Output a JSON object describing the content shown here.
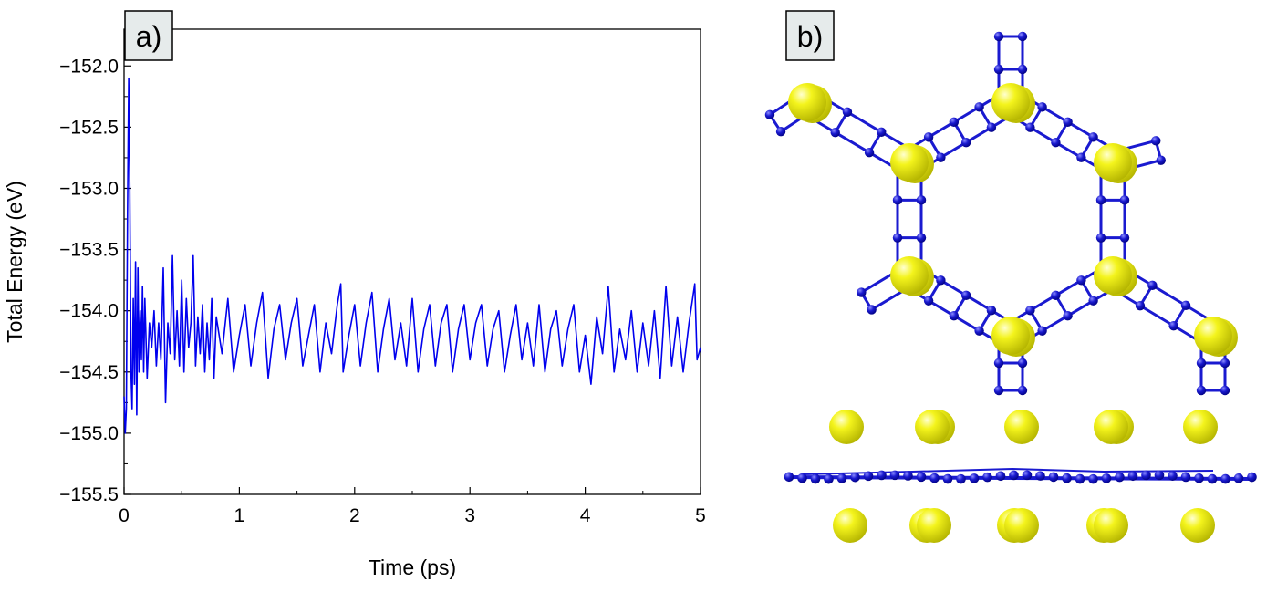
{
  "panels": {
    "a_label": "a)",
    "b_label": "b)"
  },
  "colors": {
    "series": "#0000ee",
    "atom_blue": "#1a1ad0",
    "atom_yellow": "#ecec10",
    "label_box_bg": "#e6ebeb"
  },
  "chart_data": {
    "type": "line",
    "title": "",
    "xlabel": "Time (ps)",
    "ylabel": "Total Energy (eV)",
    "xlim": [
      0,
      5
    ],
    "ylim": [
      -155.5,
      -151.7
    ],
    "x_ticks": [
      0,
      1,
      2,
      3,
      4,
      5
    ],
    "x_tick_labels": [
      "0",
      "1",
      "2",
      "3",
      "4",
      "5"
    ],
    "y_ticks": [
      -152.0,
      -152.5,
      -153.0,
      -153.5,
      -154.0,
      -154.5,
      -155.0,
      -155.5
    ],
    "y_tick_labels": [
      "−152.0",
      "−152.5",
      "−153.0",
      "−153.5",
      "−154.0",
      "−154.5",
      "−155.0",
      "−155.5"
    ],
    "grid": false,
    "legend": "none",
    "series": [
      {
        "points": [
          [
            0.0,
            -154.7
          ],
          [
            0.01,
            -155.0
          ],
          [
            0.02,
            -154.8
          ],
          [
            0.03,
            -153.2
          ],
          [
            0.04,
            -152.1
          ],
          [
            0.05,
            -153.0
          ],
          [
            0.06,
            -154.5
          ],
          [
            0.07,
            -154.8
          ],
          [
            0.08,
            -153.9
          ],
          [
            0.09,
            -154.6
          ],
          [
            0.1,
            -153.6
          ],
          [
            0.11,
            -154.85
          ],
          [
            0.12,
            -153.65
          ],
          [
            0.13,
            -154.5
          ],
          [
            0.14,
            -154.0
          ],
          [
            0.15,
            -154.4
          ],
          [
            0.16,
            -153.8
          ],
          [
            0.17,
            -154.5
          ],
          [
            0.18,
            -153.9
          ],
          [
            0.2,
            -154.55
          ],
          [
            0.22,
            -154.1
          ],
          [
            0.24,
            -154.3
          ],
          [
            0.26,
            -154.0
          ],
          [
            0.28,
            -154.45
          ],
          [
            0.3,
            -154.1
          ],
          [
            0.32,
            -154.4
          ],
          [
            0.34,
            -153.65
          ],
          [
            0.36,
            -154.75
          ],
          [
            0.38,
            -154.1
          ],
          [
            0.4,
            -154.35
          ],
          [
            0.42,
            -153.55
          ],
          [
            0.44,
            -154.4
          ],
          [
            0.46,
            -154.0
          ],
          [
            0.48,
            -154.45
          ],
          [
            0.5,
            -153.75
          ],
          [
            0.52,
            -154.5
          ],
          [
            0.54,
            -153.9
          ],
          [
            0.56,
            -154.3
          ],
          [
            0.58,
            -154.1
          ],
          [
            0.6,
            -153.55
          ],
          [
            0.62,
            -154.45
          ],
          [
            0.64,
            -154.05
          ],
          [
            0.66,
            -154.35
          ],
          [
            0.68,
            -153.95
          ],
          [
            0.7,
            -154.5
          ],
          [
            0.72,
            -154.1
          ],
          [
            0.74,
            -154.4
          ],
          [
            0.76,
            -153.9
          ],
          [
            0.78,
            -154.55
          ],
          [
            0.8,
            -154.05
          ],
          [
            0.85,
            -154.35
          ],
          [
            0.9,
            -153.9
          ],
          [
            0.95,
            -154.5
          ],
          [
            1.0,
            -154.2
          ],
          [
            1.05,
            -153.95
          ],
          [
            1.1,
            -154.45
          ],
          [
            1.15,
            -154.1
          ],
          [
            1.2,
            -153.85
          ],
          [
            1.25,
            -154.55
          ],
          [
            1.3,
            -154.15
          ],
          [
            1.35,
            -153.95
          ],
          [
            1.4,
            -154.4
          ],
          [
            1.45,
            -154.1
          ],
          [
            1.5,
            -153.9
          ],
          [
            1.55,
            -154.45
          ],
          [
            1.6,
            -154.2
          ],
          [
            1.65,
            -153.95
          ],
          [
            1.7,
            -154.5
          ],
          [
            1.75,
            -154.1
          ],
          [
            1.8,
            -154.35
          ],
          [
            1.85,
            -153.95
          ],
          [
            1.88,
            -153.78
          ],
          [
            1.9,
            -154.5
          ],
          [
            1.95,
            -154.2
          ],
          [
            2.0,
            -153.95
          ],
          [
            2.05,
            -154.45
          ],
          [
            2.1,
            -154.1
          ],
          [
            2.15,
            -153.85
          ],
          [
            2.2,
            -154.5
          ],
          [
            2.25,
            -154.15
          ],
          [
            2.3,
            -153.9
          ],
          [
            2.35,
            -154.4
          ],
          [
            2.4,
            -154.1
          ],
          [
            2.45,
            -154.45
          ],
          [
            2.5,
            -153.9
          ],
          [
            2.55,
            -154.5
          ],
          [
            2.6,
            -154.15
          ],
          [
            2.65,
            -153.95
          ],
          [
            2.7,
            -154.45
          ],
          [
            2.75,
            -154.1
          ],
          [
            2.8,
            -153.95
          ],
          [
            2.85,
            -154.5
          ],
          [
            2.9,
            -154.15
          ],
          [
            2.95,
            -153.95
          ],
          [
            3.0,
            -154.4
          ],
          [
            3.05,
            -154.1
          ],
          [
            3.1,
            -153.95
          ],
          [
            3.15,
            -154.45
          ],
          [
            3.2,
            -154.15
          ],
          [
            3.25,
            -154.0
          ],
          [
            3.3,
            -154.5
          ],
          [
            3.35,
            -154.2
          ],
          [
            3.4,
            -153.95
          ],
          [
            3.45,
            -154.4
          ],
          [
            3.5,
            -154.1
          ],
          [
            3.55,
            -154.45
          ],
          [
            3.6,
            -153.95
          ],
          [
            3.65,
            -154.5
          ],
          [
            3.7,
            -154.15
          ],
          [
            3.75,
            -154.0
          ],
          [
            3.8,
            -154.45
          ],
          [
            3.85,
            -154.15
          ],
          [
            3.9,
            -153.95
          ],
          [
            3.95,
            -154.5
          ],
          [
            4.0,
            -154.2
          ],
          [
            4.05,
            -154.6
          ],
          [
            4.1,
            -154.05
          ],
          [
            4.15,
            -154.35
          ],
          [
            4.2,
            -153.8
          ],
          [
            4.25,
            -154.5
          ],
          [
            4.3,
            -154.15
          ],
          [
            4.35,
            -154.4
          ],
          [
            4.4,
            -154.0
          ],
          [
            4.45,
            -154.5
          ],
          [
            4.5,
            -154.1
          ],
          [
            4.55,
            -154.45
          ],
          [
            4.6,
            -154.0
          ],
          [
            4.65,
            -154.55
          ],
          [
            4.7,
            -153.8
          ],
          [
            4.75,
            -154.45
          ],
          [
            4.8,
            -154.05
          ],
          [
            4.85,
            -154.5
          ],
          [
            4.9,
            -154.1
          ],
          [
            4.95,
            -153.78
          ],
          [
            4.97,
            -154.4
          ],
          [
            5.0,
            -154.3
          ]
        ]
      }
    ]
  }
}
